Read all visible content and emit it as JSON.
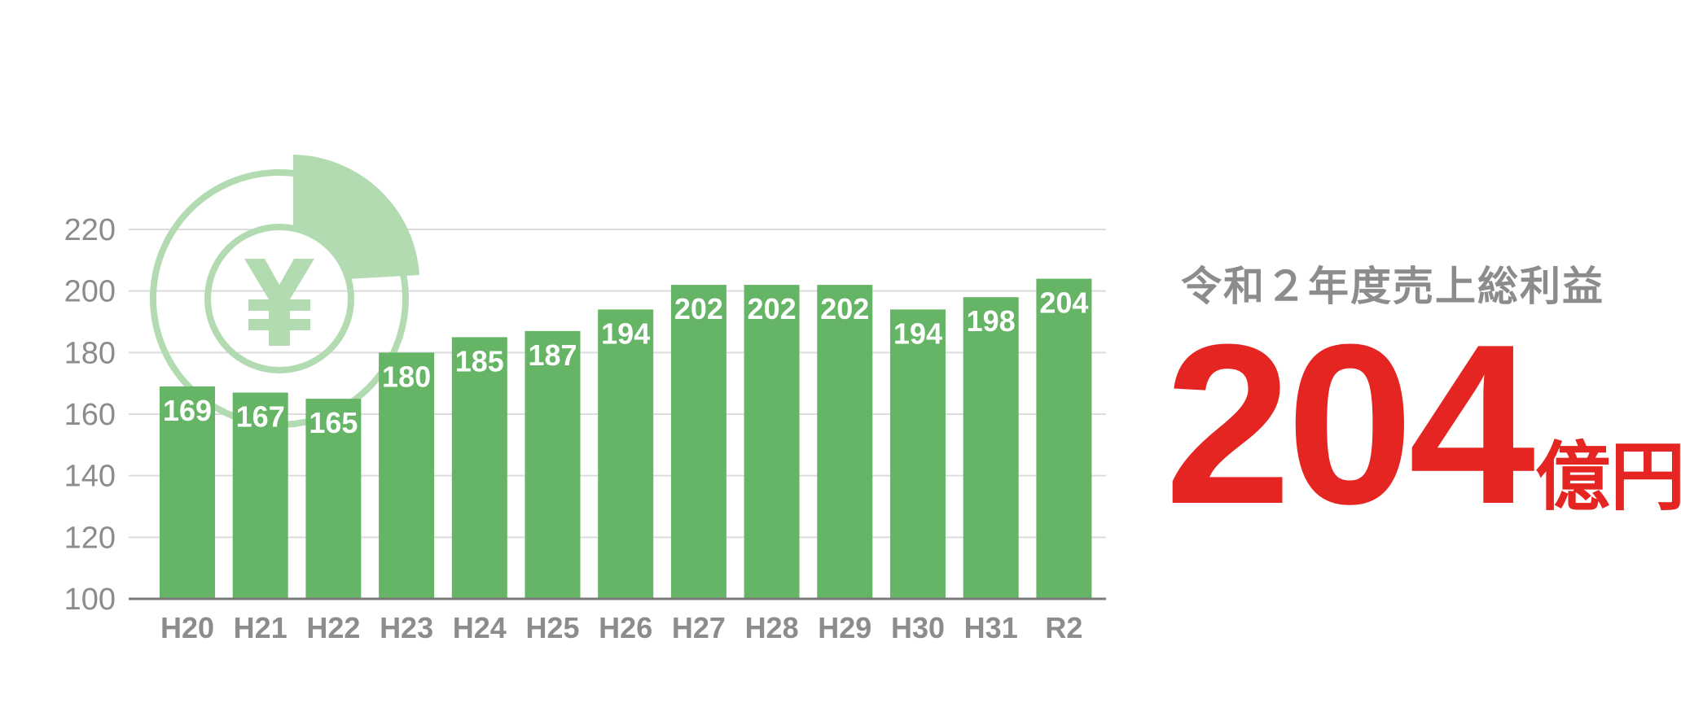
{
  "chart_data": {
    "type": "bar",
    "categories": [
      "H20",
      "H21",
      "H22",
      "H23",
      "H24",
      "H25",
      "H26",
      "H27",
      "H28",
      "H29",
      "H30",
      "H31",
      "R2"
    ],
    "values": [
      169,
      167,
      165,
      180,
      185,
      187,
      194,
      202,
      202,
      202,
      194,
      198,
      204
    ],
    "title": "",
    "xlabel": "",
    "ylabel": "",
    "ylim": [
      100,
      220
    ],
    "yticks": [
      100,
      120,
      140,
      160,
      180,
      200,
      220
    ],
    "grid": true,
    "bar_color": "#66b466",
    "data_labels": true
  },
  "summary": {
    "title": "令和２年度売上総利益",
    "value": "204",
    "unit": "億円",
    "color": "#e52521"
  },
  "decoration": {
    "icon": "yen-pie-chart-icon",
    "color": "#b2dbb2"
  }
}
